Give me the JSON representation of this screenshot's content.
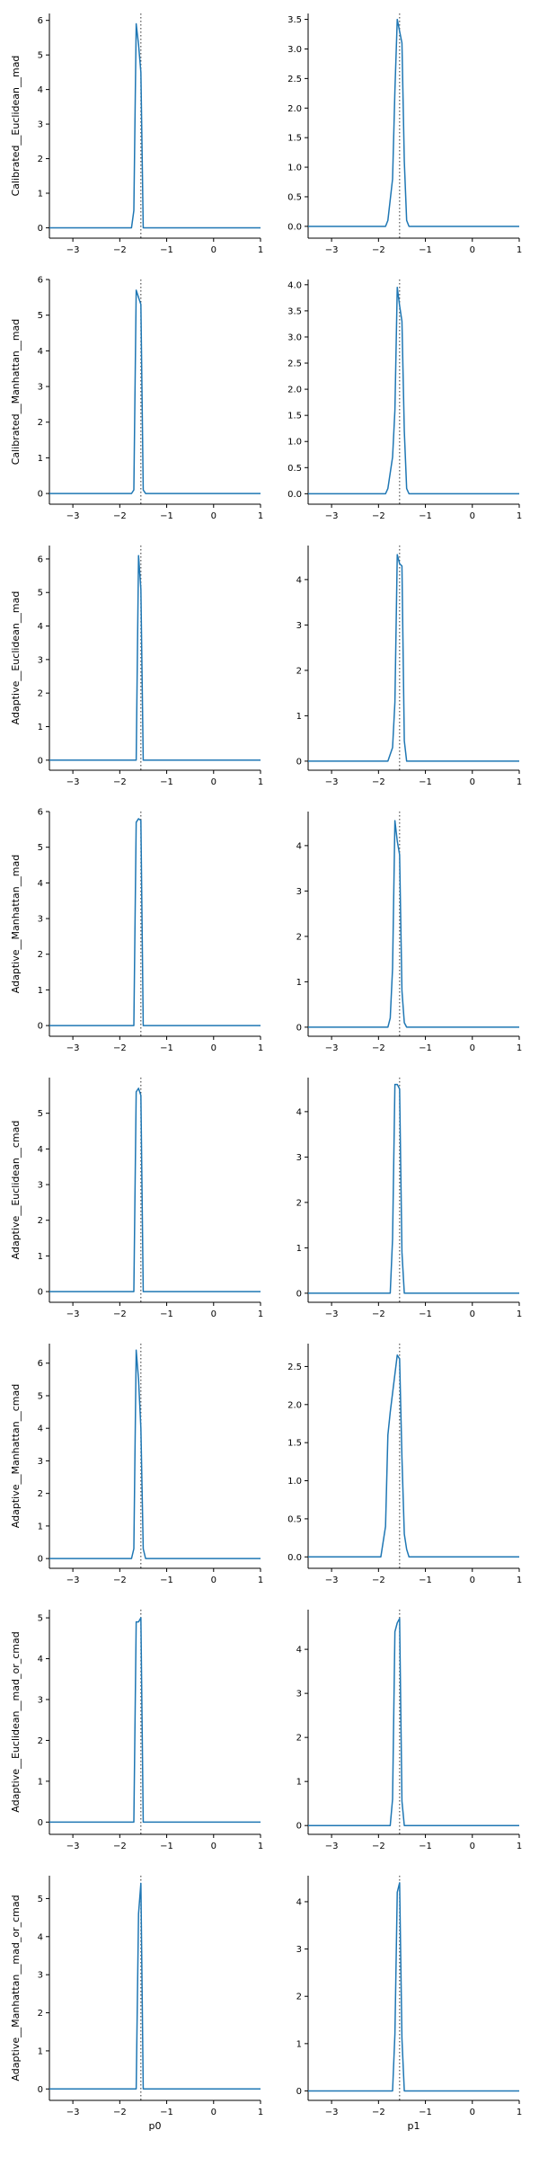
{
  "colors": {
    "line": "#1f77b4",
    "axis": "#000000",
    "ref": "#333333"
  },
  "chart_data": [
    {
      "type": "line",
      "row": 0,
      "col": 0,
      "ylabel": "Calibrated__Euclidean__mad",
      "xlabel": "",
      "xlim": [
        -3.5,
        1
      ],
      "ylim": [
        -0.3,
        6.2
      ],
      "xticks": [
        -3,
        -2,
        -1,
        0,
        1
      ],
      "yticks": [
        0,
        1,
        2,
        3,
        4,
        5,
        6
      ],
      "ref_x": -1.55,
      "series": [
        {
          "x": [
            -3.5,
            -1.75,
            -1.7,
            -1.65,
            -1.6,
            -1.55,
            -1.5,
            -1.45,
            1
          ],
          "y": [
            0,
            0,
            0.5,
            5.9,
            5.3,
            4.5,
            0,
            0,
            0
          ]
        }
      ]
    },
    {
      "type": "line",
      "row": 0,
      "col": 1,
      "ylabel": "",
      "xlabel": "",
      "xlim": [
        -3.5,
        1
      ],
      "ylim": [
        -0.2,
        3.6
      ],
      "xticks": [
        -3,
        -2,
        -1,
        0,
        1
      ],
      "yticks": [
        0.0,
        0.5,
        1.0,
        1.5,
        2.0,
        2.5,
        3.0,
        3.5
      ],
      "ytick_decimals": 1,
      "ref_x": -1.55,
      "series": [
        {
          "x": [
            -3.5,
            -1.85,
            -1.8,
            -1.7,
            -1.65,
            -1.6,
            -1.55,
            -1.5,
            -1.45,
            -1.4,
            -1.35,
            1
          ],
          "y": [
            0,
            0,
            0.1,
            0.8,
            2.3,
            3.5,
            3.3,
            3.1,
            1.1,
            0.1,
            0,
            0
          ]
        }
      ]
    },
    {
      "type": "line",
      "row": 1,
      "col": 0,
      "ylabel": "Calibrated__Manhattan__mad",
      "xlabel": "",
      "xlim": [
        -3.5,
        1
      ],
      "ylim": [
        -0.3,
        6.0
      ],
      "xticks": [
        -3,
        -2,
        -1,
        0,
        1
      ],
      "yticks": [
        0,
        1,
        2,
        3,
        4,
        5,
        6
      ],
      "ref_x": -1.55,
      "series": [
        {
          "x": [
            -3.5,
            -1.75,
            -1.7,
            -1.65,
            -1.6,
            -1.55,
            -1.5,
            -1.45,
            1
          ],
          "y": [
            0,
            0,
            0.1,
            5.7,
            5.5,
            5.3,
            0.1,
            0,
            0
          ]
        }
      ]
    },
    {
      "type": "line",
      "row": 1,
      "col": 1,
      "ylabel": "",
      "xlabel": "",
      "xlim": [
        -3.5,
        1
      ],
      "ylim": [
        -0.2,
        4.1
      ],
      "xticks": [
        -3,
        -2,
        -1,
        0,
        1
      ],
      "yticks": [
        0.0,
        0.5,
        1.0,
        1.5,
        2.0,
        2.5,
        3.0,
        3.5,
        4.0
      ],
      "ytick_decimals": 1,
      "ref_x": -1.55,
      "series": [
        {
          "x": [
            -3.5,
            -1.85,
            -1.8,
            -1.7,
            -1.65,
            -1.6,
            -1.55,
            -1.5,
            -1.45,
            -1.4,
            -1.35,
            1
          ],
          "y": [
            0,
            0,
            0.1,
            0.7,
            1.6,
            3.95,
            3.6,
            3.3,
            1.2,
            0.1,
            0,
            0
          ]
        }
      ]
    },
    {
      "type": "line",
      "row": 2,
      "col": 0,
      "ylabel": "Adaptive__Euclidean__mad",
      "xlabel": "",
      "xlim": [
        -3.5,
        1
      ],
      "ylim": [
        -0.3,
        6.4
      ],
      "xticks": [
        -3,
        -2,
        -1,
        0,
        1
      ],
      "yticks": [
        0,
        1,
        2,
        3,
        4,
        5,
        6
      ],
      "ref_x": -1.55,
      "series": [
        {
          "x": [
            -3.5,
            -1.65,
            -1.6,
            -1.55,
            -1.5,
            -1.45,
            1
          ],
          "y": [
            0,
            0,
            6.1,
            5.1,
            0,
            0,
            0
          ]
        }
      ]
    },
    {
      "type": "line",
      "row": 2,
      "col": 1,
      "ylabel": "",
      "xlabel": "",
      "xlim": [
        -3.5,
        1
      ],
      "ylim": [
        -0.2,
        4.75
      ],
      "xticks": [
        -3,
        -2,
        -1,
        0,
        1
      ],
      "yticks": [
        0,
        1,
        2,
        3,
        4
      ],
      "ref_x": -1.55,
      "series": [
        {
          "x": [
            -3.5,
            -1.8,
            -1.7,
            -1.65,
            -1.6,
            -1.55,
            -1.5,
            -1.45,
            -1.4,
            1
          ],
          "y": [
            0,
            0,
            0.3,
            1.3,
            4.55,
            4.35,
            4.3,
            0.45,
            0,
            0
          ]
        }
      ]
    },
    {
      "type": "line",
      "row": 3,
      "col": 0,
      "ylabel": "Adaptive__Manhattan__mad",
      "xlabel": "",
      "xlim": [
        -3.5,
        1
      ],
      "ylim": [
        -0.3,
        6.0
      ],
      "xticks": [
        -3,
        -2,
        -1,
        0,
        1
      ],
      "yticks": [
        0,
        1,
        2,
        3,
        4,
        5,
        6
      ],
      "ref_x": -1.55,
      "series": [
        {
          "x": [
            -3.5,
            -1.7,
            -1.65,
            -1.6,
            -1.55,
            -1.5,
            -1.45,
            1
          ],
          "y": [
            0,
            0,
            5.7,
            5.8,
            5.75,
            0,
            0,
            0
          ]
        }
      ]
    },
    {
      "type": "line",
      "row": 3,
      "col": 1,
      "ylabel": "",
      "xlabel": "",
      "xlim": [
        -3.5,
        1
      ],
      "ylim": [
        -0.2,
        4.75
      ],
      "xticks": [
        -3,
        -2,
        -1,
        0,
        1
      ],
      "yticks": [
        0,
        1,
        2,
        3,
        4
      ],
      "ref_x": -1.55,
      "series": [
        {
          "x": [
            -3.5,
            -1.8,
            -1.75,
            -1.7,
            -1.65,
            -1.6,
            -1.55,
            -1.5,
            -1.45,
            -1.4,
            1
          ],
          "y": [
            0,
            0,
            0.2,
            1.3,
            4.55,
            4.1,
            3.8,
            0.8,
            0.1,
            0,
            0
          ]
        }
      ]
    },
    {
      "type": "line",
      "row": 4,
      "col": 0,
      "ylabel": "Adaptive__Euclidean__cmad",
      "xlabel": "",
      "xlim": [
        -3.5,
        1
      ],
      "ylim": [
        -0.3,
        6.0
      ],
      "xticks": [
        -3,
        -2,
        -1,
        0,
        1
      ],
      "yticks": [
        0,
        1,
        2,
        3,
        4,
        5
      ],
      "ref_x": -1.55,
      "series": [
        {
          "x": [
            -3.5,
            -1.7,
            -1.65,
            -1.6,
            -1.55,
            -1.5,
            -1.45,
            1
          ],
          "y": [
            0,
            0,
            5.6,
            5.7,
            5.5,
            0,
            0,
            0
          ]
        }
      ]
    },
    {
      "type": "line",
      "row": 4,
      "col": 1,
      "ylabel": "",
      "xlabel": "",
      "xlim": [
        -3.5,
        1
      ],
      "ylim": [
        -0.2,
        4.75
      ],
      "xticks": [
        -3,
        -2,
        -1,
        0,
        1
      ],
      "yticks": [
        0,
        1,
        2,
        3,
        4
      ],
      "ref_x": -1.55,
      "series": [
        {
          "x": [
            -3.5,
            -1.75,
            -1.7,
            -1.65,
            -1.6,
            -1.55,
            -1.5,
            -1.45,
            -1.4,
            1
          ],
          "y": [
            0,
            0,
            1.2,
            4.6,
            4.6,
            4.5,
            0.9,
            0,
            0,
            0
          ]
        }
      ]
    },
    {
      "type": "line",
      "row": 5,
      "col": 0,
      "ylabel": "Adaptive__Manhattan__cmad",
      "xlabel": "",
      "xlim": [
        -3.5,
        1
      ],
      "ylim": [
        -0.3,
        6.6
      ],
      "xticks": [
        -3,
        -2,
        -1,
        0,
        1
      ],
      "yticks": [
        0,
        1,
        2,
        3,
        4,
        5,
        6
      ],
      "ref_x": -1.55,
      "series": [
        {
          "x": [
            -3.5,
            -1.75,
            -1.7,
            -1.65,
            -1.6,
            -1.55,
            -1.5,
            -1.45,
            1
          ],
          "y": [
            0,
            0,
            0.3,
            6.4,
            5.5,
            4.0,
            0.3,
            0,
            0
          ]
        }
      ]
    },
    {
      "type": "line",
      "row": 5,
      "col": 1,
      "ylabel": "",
      "xlabel": "",
      "xlim": [
        -3.5,
        1
      ],
      "ylim": [
        -0.15,
        2.8
      ],
      "xticks": [
        -3,
        -2,
        -1,
        0,
        1
      ],
      "yticks": [
        0.0,
        0.5,
        1.0,
        1.5,
        2.0,
        2.5
      ],
      "ytick_decimals": 1,
      "ref_x": -1.55,
      "series": [
        {
          "x": [
            -3.5,
            -1.95,
            -1.85,
            -1.8,
            -1.75,
            -1.6,
            -1.55,
            -1.5,
            -1.45,
            -1.4,
            -1.35,
            -1.3,
            1
          ],
          "y": [
            0,
            0,
            0.4,
            1.6,
            1.9,
            2.65,
            2.6,
            1.3,
            0.3,
            0.1,
            0,
            0,
            0
          ]
        }
      ]
    },
    {
      "type": "line",
      "row": 6,
      "col": 0,
      "ylabel": "Adaptive__Euclidean__mad_or_cmad",
      "xlabel": "",
      "xlim": [
        -3.5,
        1
      ],
      "ylim": [
        -0.3,
        5.2
      ],
      "xticks": [
        -3,
        -2,
        -1,
        0,
        1
      ],
      "yticks": [
        0,
        1,
        2,
        3,
        4,
        5
      ],
      "ref_x": -1.55,
      "series": [
        {
          "x": [
            -3.5,
            -1.7,
            -1.65,
            -1.6,
            -1.55,
            -1.5,
            -1.45,
            1
          ],
          "y": [
            0,
            0,
            4.9,
            4.9,
            5.0,
            0,
            0,
            0
          ]
        }
      ]
    },
    {
      "type": "line",
      "row": 6,
      "col": 1,
      "ylabel": "",
      "xlabel": "",
      "xlim": [
        -3.5,
        1
      ],
      "ylim": [
        -0.2,
        4.9
      ],
      "xticks": [
        -3,
        -2,
        -1,
        0,
        1
      ],
      "yticks": [
        0,
        1,
        2,
        3,
        4
      ],
      "ref_x": -1.55,
      "series": [
        {
          "x": [
            -3.5,
            -1.75,
            -1.7,
            -1.65,
            -1.6,
            -1.55,
            -1.5,
            -1.45,
            -1.4,
            1
          ],
          "y": [
            0,
            0,
            0.6,
            4.4,
            4.6,
            4.7,
            0.55,
            0,
            0,
            0
          ]
        }
      ]
    },
    {
      "type": "line",
      "row": 7,
      "col": 0,
      "ylabel": "Adaptive__Manhattan__mad_or_cmad",
      "xlabel": "p0",
      "xlim": [
        -3.5,
        1
      ],
      "ylim": [
        -0.3,
        5.6
      ],
      "xticks": [
        -3,
        -2,
        -1,
        0,
        1
      ],
      "yticks": [
        0,
        1,
        2,
        3,
        4,
        5
      ],
      "ref_x": -1.55,
      "series": [
        {
          "x": [
            -3.5,
            -1.65,
            -1.6,
            -1.55,
            -1.5,
            -1.45,
            1
          ],
          "y": [
            0,
            0,
            4.6,
            5.4,
            0,
            0,
            0
          ]
        }
      ]
    },
    {
      "type": "line",
      "row": 7,
      "col": 1,
      "ylabel": "",
      "xlabel": "p1",
      "xlim": [
        -3.5,
        1
      ],
      "ylim": [
        -0.2,
        4.55
      ],
      "xticks": [
        -3,
        -2,
        -1,
        0,
        1
      ],
      "yticks": [
        0,
        1,
        2,
        3,
        4
      ],
      "ref_x": -1.55,
      "series": [
        {
          "x": [
            -3.5,
            -1.7,
            -1.65,
            -1.6,
            -1.55,
            -1.5,
            -1.45,
            -1.4,
            1
          ],
          "y": [
            0,
            0,
            1.2,
            4.2,
            4.4,
            1.1,
            0,
            0,
            0
          ]
        }
      ]
    }
  ]
}
